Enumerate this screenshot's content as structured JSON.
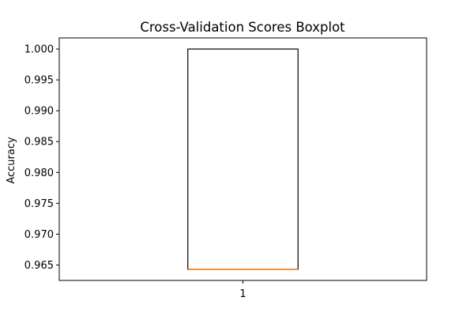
{
  "chart_data": {
    "type": "boxplot",
    "title": "Cross-Validation Scores Boxplot",
    "xlabel": "",
    "ylabel": "Accuracy",
    "categories": [
      "1"
    ],
    "boxes": [
      {
        "category": "1",
        "min": 0.9643,
        "q1": 0.9643,
        "median": 0.9643,
        "q3": 1.0,
        "max": 1.0
      }
    ],
    "ylim": [
      0.9625,
      1.0018
    ],
    "yticks": [
      0.965,
      0.97,
      0.975,
      0.98,
      0.985,
      0.99,
      0.995,
      1.0
    ],
    "ytick_labels": [
      "0.965",
      "0.970",
      "0.975",
      "0.980",
      "0.985",
      "0.990",
      "0.995",
      "1.000"
    ],
    "grid": false,
    "colors": {
      "box": "#000000",
      "median": "#ff7f0e"
    }
  }
}
